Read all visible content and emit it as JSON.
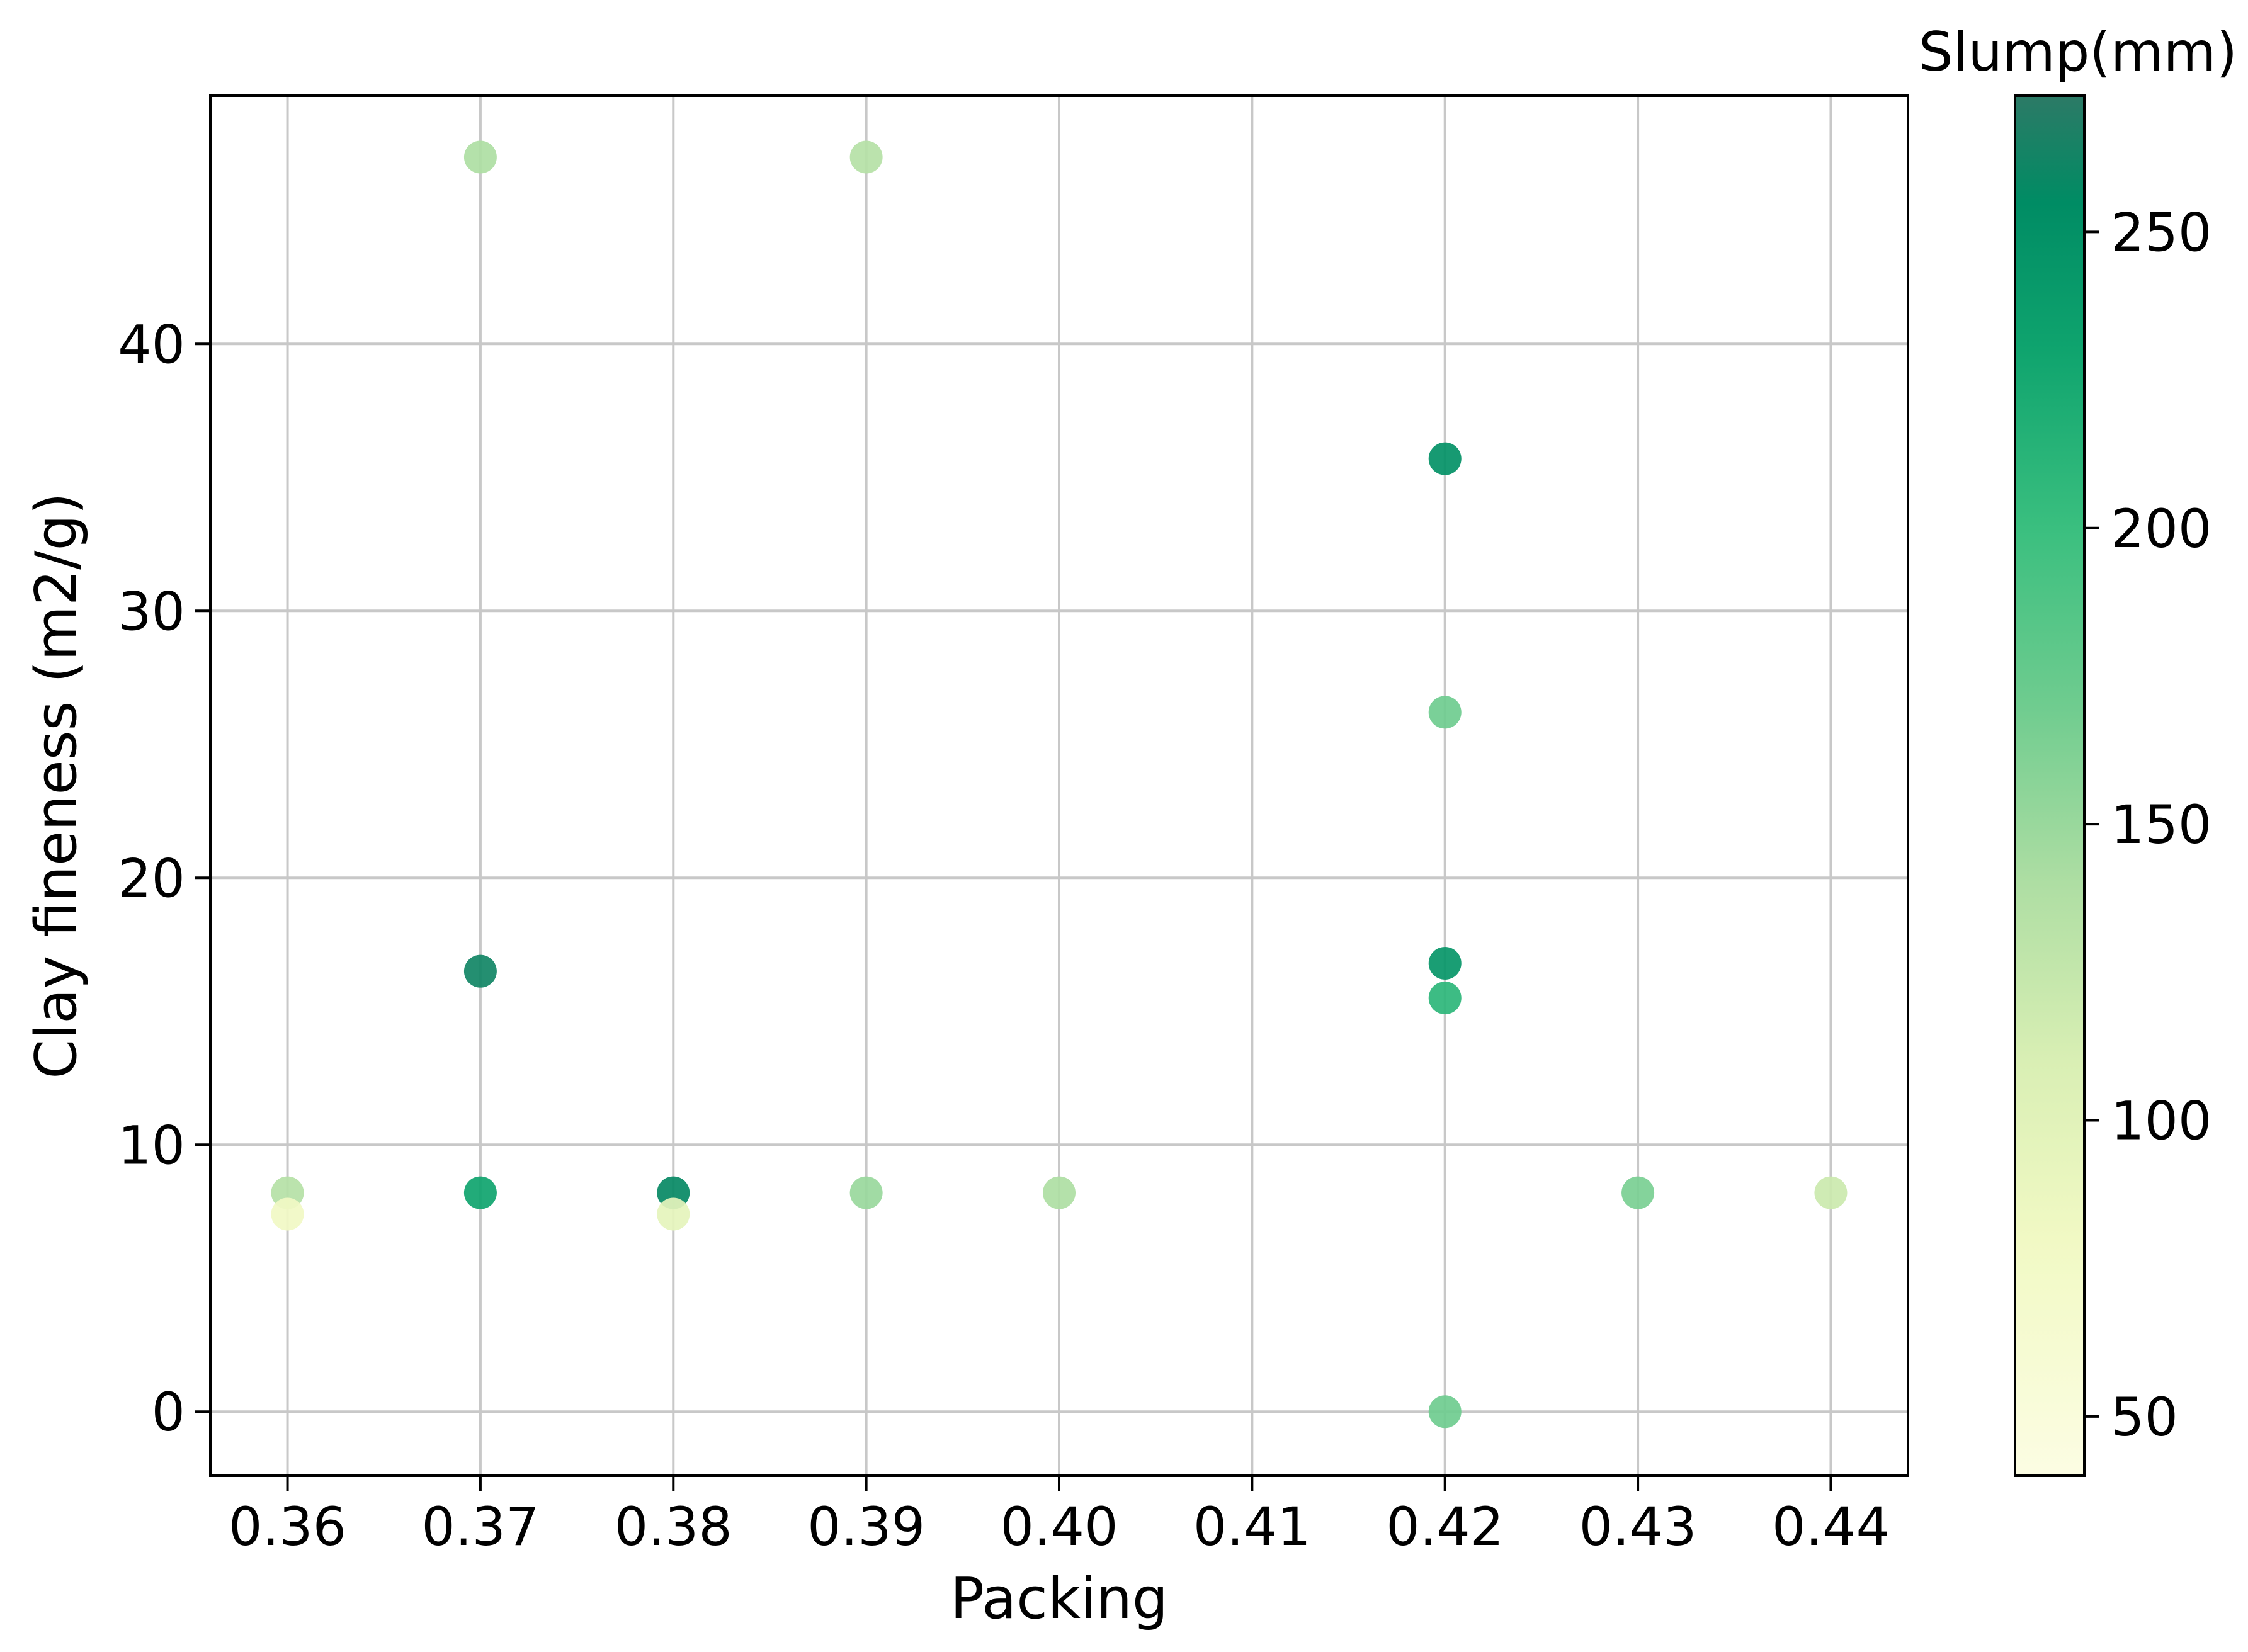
{
  "chart_data": {
    "type": "scatter",
    "xlabel": "Packing",
    "ylabel": "Clay fineness (m2/g)",
    "xlim": [
      0.356,
      0.444
    ],
    "ylim": [
      -2.4,
      49.3
    ],
    "x_ticks": [
      "0.36",
      "0.37",
      "0.38",
      "0.39",
      "0.40",
      "0.41",
      "0.42",
      "0.43",
      "0.44"
    ],
    "x_tick_values": [
      0.36,
      0.37,
      0.38,
      0.39,
      0.4,
      0.41,
      0.42,
      0.43,
      0.44
    ],
    "y_ticks": [
      "0",
      "10",
      "20",
      "30",
      "40"
    ],
    "y_tick_values": [
      0,
      10,
      20,
      30,
      40
    ],
    "grid": true,
    "colorbar": {
      "title": "Slump(mm)",
      "range": [
        40,
        273
      ],
      "ticks": [
        "50",
        "100",
        "150",
        "200",
        "250"
      ],
      "tick_values": [
        50,
        100,
        150,
        200,
        250
      ],
      "colormap": "YlGn-like",
      "stops": [
        {
          "value": 40,
          "color": "#fcfde3"
        },
        {
          "value": 80,
          "color": "#f1f9c4"
        },
        {
          "value": 110,
          "color": "#d9efb4"
        },
        {
          "value": 140,
          "color": "#aedea3"
        },
        {
          "value": 170,
          "color": "#6fcc8f"
        },
        {
          "value": 200,
          "color": "#3abf7f"
        },
        {
          "value": 230,
          "color": "#0fa46e"
        },
        {
          "value": 255,
          "color": "#008c64"
        },
        {
          "value": 273,
          "color": "#2c7a66"
        }
      ]
    },
    "points": [
      {
        "x": 0.37,
        "y": 47.0,
        "slump": 140
      },
      {
        "x": 0.39,
        "y": 47.0,
        "slump": 135
      },
      {
        "x": 0.42,
        "y": 35.7,
        "slump": 250
      },
      {
        "x": 0.42,
        "y": 26.2,
        "slump": 170
      },
      {
        "x": 0.42,
        "y": 16.8,
        "slump": 245
      },
      {
        "x": 0.42,
        "y": 15.5,
        "slump": 210
      },
      {
        "x": 0.37,
        "y": 16.5,
        "slump": 262
      },
      {
        "x": 0.37,
        "y": 8.2,
        "slump": 230
      },
      {
        "x": 0.38,
        "y": 8.2,
        "slump": 258
      },
      {
        "x": 0.36,
        "y": 8.2,
        "slump": 135
      },
      {
        "x": 0.36,
        "y": 7.4,
        "slump": 80
      },
      {
        "x": 0.38,
        "y": 7.4,
        "slump": 95
      },
      {
        "x": 0.39,
        "y": 8.2,
        "slump": 150
      },
      {
        "x": 0.4,
        "y": 8.2,
        "slump": 140
      },
      {
        "x": 0.43,
        "y": 8.2,
        "slump": 165
      },
      {
        "x": 0.44,
        "y": 8.2,
        "slump": 120
      },
      {
        "x": 0.42,
        "y": 0.0,
        "slump": 170
      }
    ]
  }
}
